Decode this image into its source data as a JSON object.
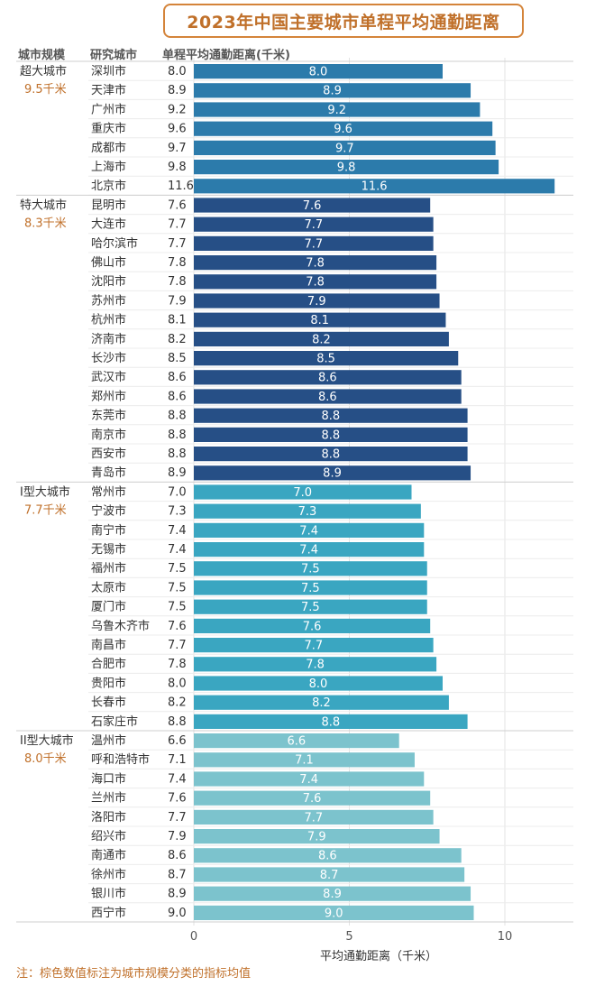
{
  "title": "2023年中国主要城市单程平均通勤距离",
  "headers": {
    "scale": "城市规模",
    "city": "研究城市",
    "value": "单程平均通勤距离(千米)"
  },
  "note": "注：棕色数值标注为城市规模分类的指标均值",
  "colors": {
    "accent": "#c0702a",
    "group_超大城市": "#2c7bab",
    "group_特大城市": "#264f86",
    "group_I型大城市": "#3aa6c1",
    "group_II型大城市": "#7cc3cd"
  },
  "chart_data": {
    "type": "bar",
    "orientation": "horizontal",
    "title": "2023年中国主要城市单程平均通勤距离",
    "xlabel": "平均通勤距离（千米）",
    "xlim": [
      0,
      12
    ],
    "xticks": [
      "0",
      "5",
      "10"
    ],
    "grid": true,
    "groups": [
      {
        "name": "超大城市",
        "mean_label": "9.5千米",
        "cities": [
          "深圳市",
          "天津市",
          "广州市",
          "重庆市",
          "成都市",
          "上海市",
          "北京市"
        ],
        "values": [
          8.0,
          8.9,
          9.2,
          9.6,
          9.7,
          9.8,
          11.6
        ]
      },
      {
        "name": "特大城市",
        "mean_label": "8.3千米",
        "cities": [
          "昆明市",
          "大连市",
          "哈尔滨市",
          "佛山市",
          "沈阳市",
          "苏州市",
          "杭州市",
          "济南市",
          "长沙市",
          "武汉市",
          "郑州市",
          "东莞市",
          "南京市",
          "西安市",
          "青岛市"
        ],
        "values": [
          7.6,
          7.7,
          7.7,
          7.8,
          7.8,
          7.9,
          8.1,
          8.2,
          8.5,
          8.6,
          8.6,
          8.8,
          8.8,
          8.8,
          8.9
        ]
      },
      {
        "name": "I型大城市",
        "mean_label": "7.7千米",
        "cities": [
          "常州市",
          "宁波市",
          "南宁市",
          "无锡市",
          "福州市",
          "太原市",
          "厦门市",
          "乌鲁木齐市",
          "南昌市",
          "合肥市",
          "贵阳市",
          "长春市",
          "石家庄市"
        ],
        "values": [
          7.0,
          7.3,
          7.4,
          7.4,
          7.5,
          7.5,
          7.5,
          7.6,
          7.7,
          7.8,
          8.0,
          8.2,
          8.8
        ]
      },
      {
        "name": "II型大城市",
        "mean_label": "8.0千米",
        "cities": [
          "温州市",
          "呼和浩特市",
          "海口市",
          "兰州市",
          "洛阳市",
          "绍兴市",
          "南通市",
          "徐州市",
          "银川市",
          "西宁市"
        ],
        "values": [
          6.6,
          7.1,
          7.4,
          7.6,
          7.7,
          7.9,
          8.6,
          8.7,
          8.9,
          9.0
        ]
      }
    ]
  }
}
